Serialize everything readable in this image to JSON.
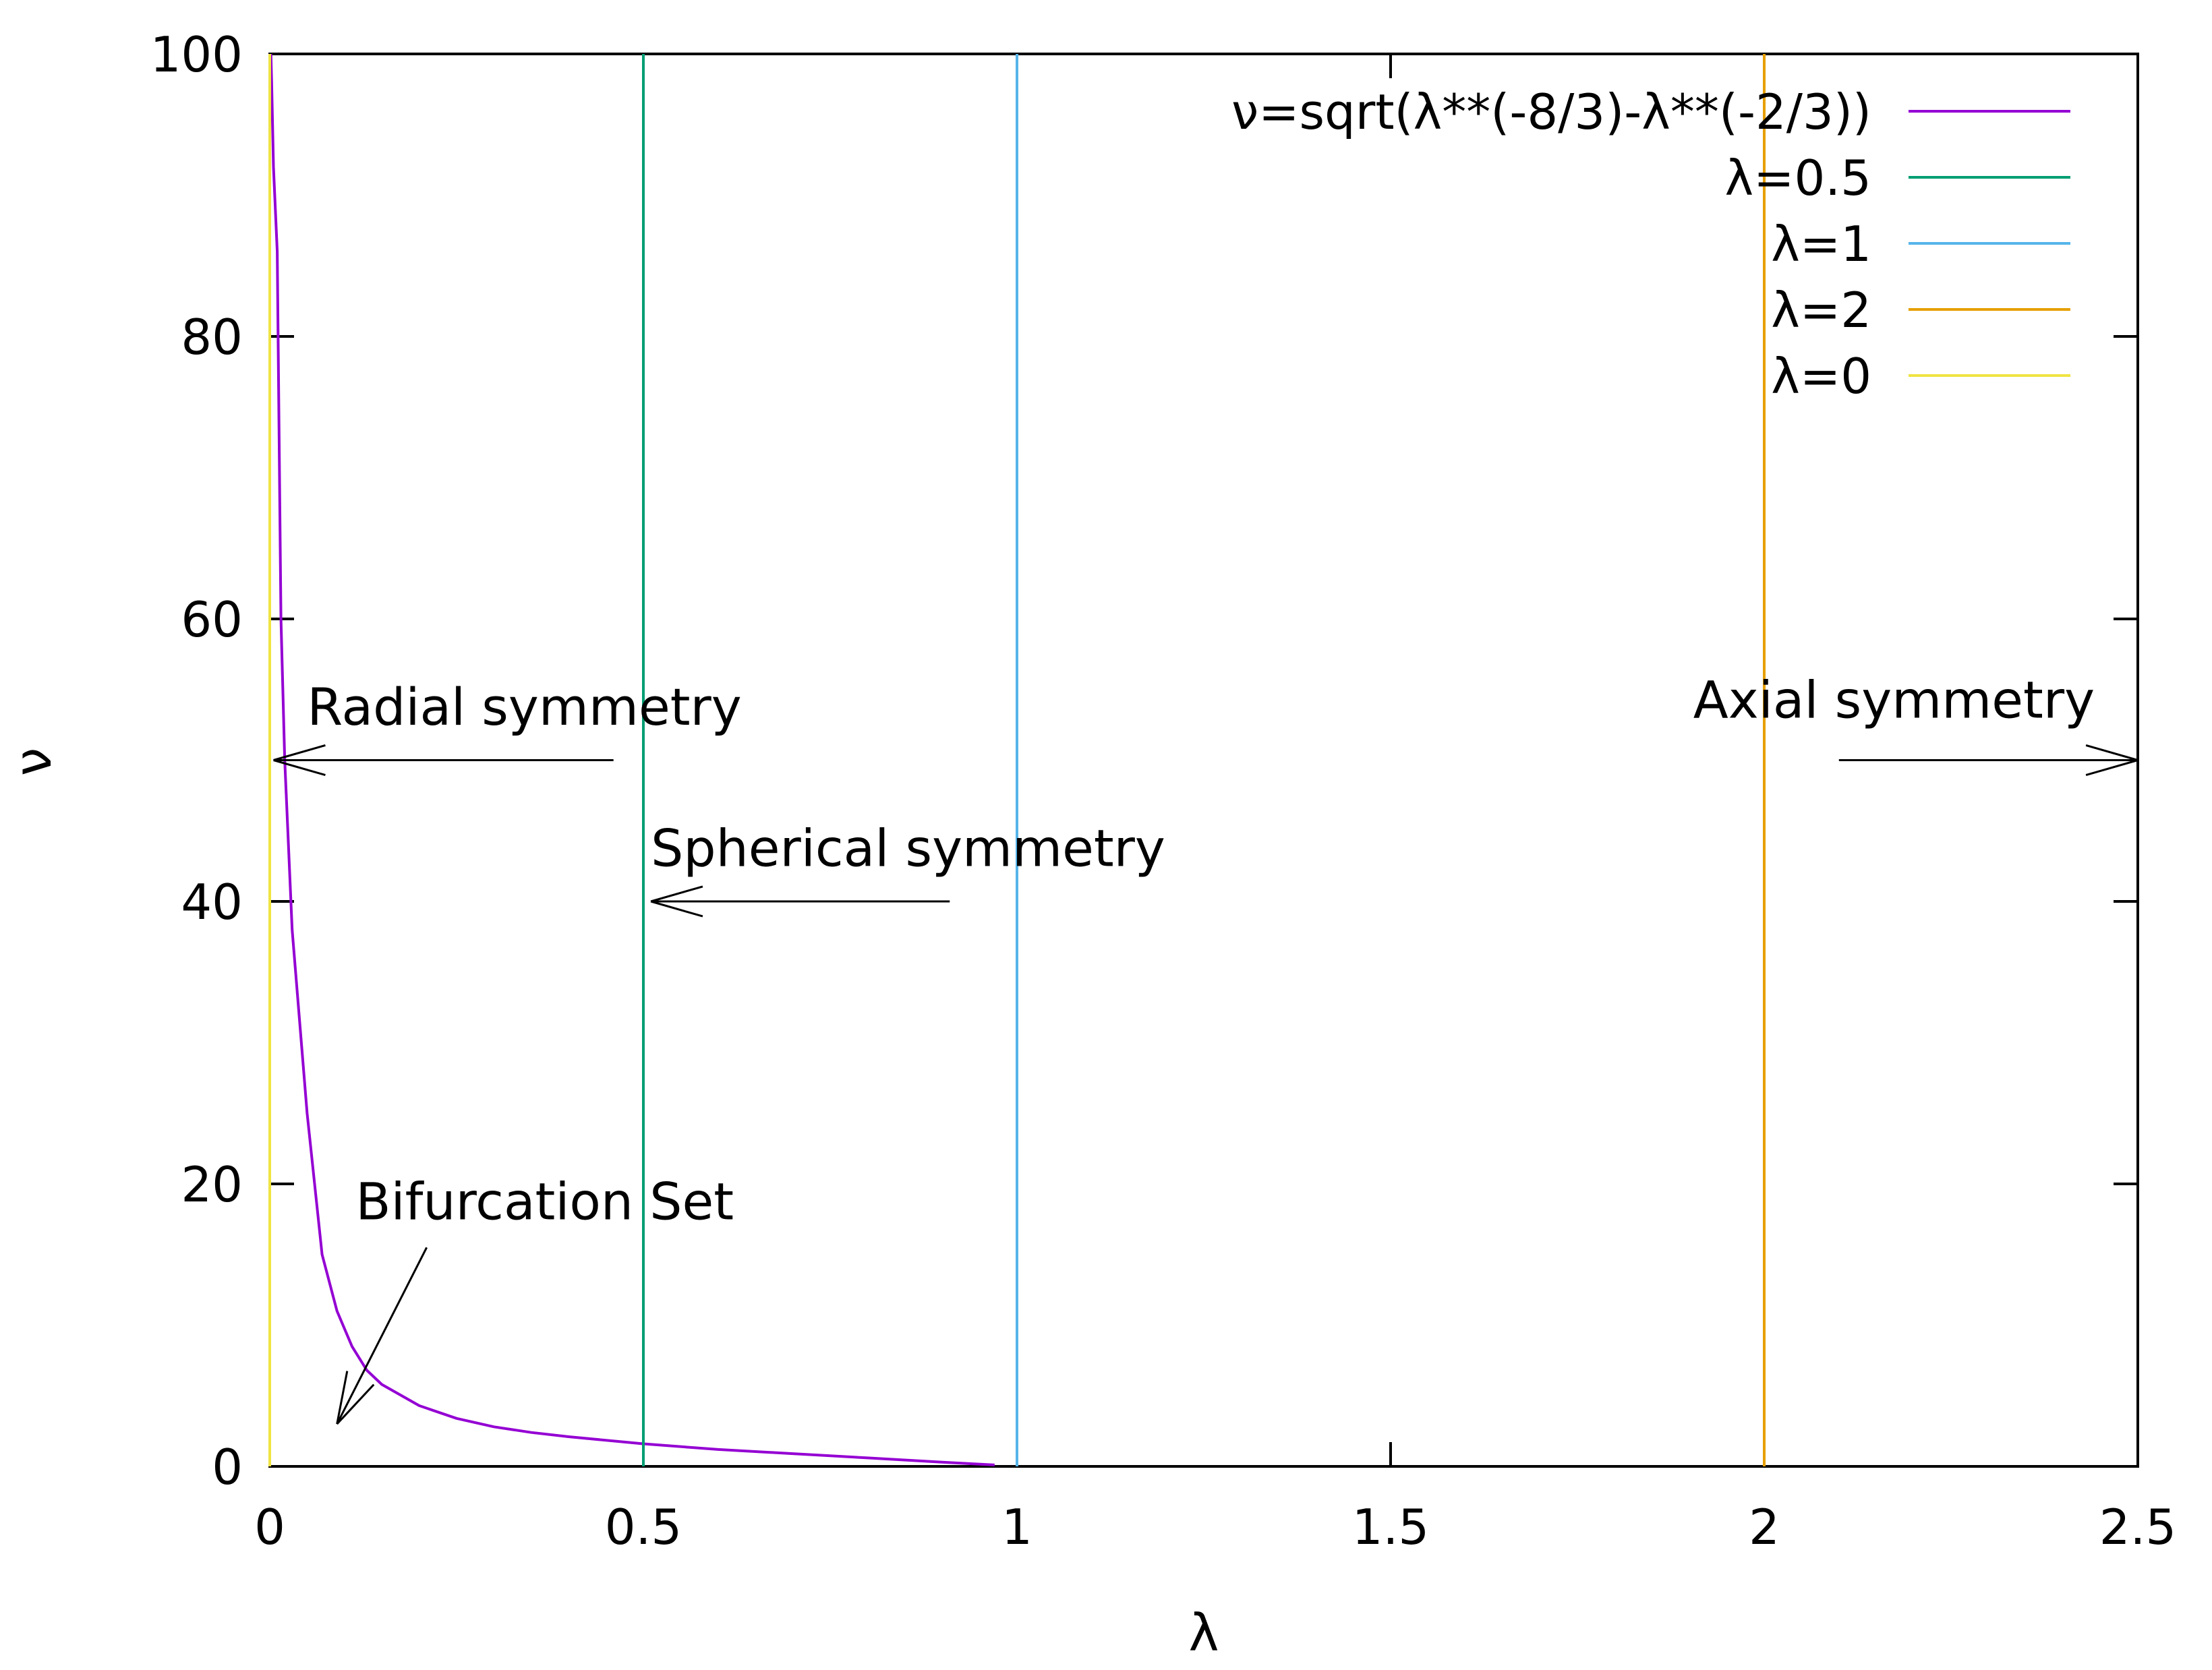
{
  "chart_data": {
    "type": "line",
    "title": "",
    "xlabel": "λ",
    "ylabel": "ν",
    "xlim": [
      0,
      2.5
    ],
    "ylim": [
      0,
      100
    ],
    "grid": false,
    "legend_position": "top-right",
    "x_ticks": [
      "0",
      "0.5",
      "1",
      "1.5",
      "2",
      "2.5"
    ],
    "x_tick_values": [
      0,
      0.5,
      1,
      1.5,
      2,
      2.5
    ],
    "y_ticks": [
      "0",
      "20",
      "40",
      "60",
      "80",
      "100"
    ],
    "y_tick_values": [
      0,
      20,
      40,
      60,
      80,
      100
    ],
    "series": [
      {
        "name": "ν=sqrt(λ**(-8/3)-λ**(-2/3))",
        "kind": "curve",
        "color": "#9400d3",
        "x": [
          0.0015,
          0.0025,
          0.005,
          0.01,
          0.015,
          0.02,
          0.03,
          0.05,
          0.07,
          0.09,
          0.11,
          0.13,
          0.15,
          0.2,
          0.25,
          0.3,
          0.35,
          0.4,
          0.5,
          0.6,
          0.7,
          0.8,
          0.9,
          0.97
        ],
        "y": [
          100,
          98,
          92,
          86,
          60,
          50,
          38,
          25,
          15,
          11,
          8.5,
          6.8,
          5.8,
          4.3,
          3.4,
          2.8,
          2.4,
          2.1,
          1.6,
          1.2,
          0.9,
          0.6,
          0.3,
          0.1
        ]
      },
      {
        "name": "λ=0.5",
        "kind": "vline",
        "x": 0.5,
        "color": "#009e73"
      },
      {
        "name": "λ=1",
        "kind": "vline",
        "x": 1,
        "color": "#56b4e9"
      },
      {
        "name": "λ=2",
        "kind": "vline",
        "x": 2,
        "color": "#e69f00"
      },
      {
        "name": "λ=0",
        "kind": "vline",
        "x": 0,
        "color": "#f0e442"
      }
    ],
    "annotations": [
      {
        "text": "Radial symmetry",
        "label_at": [
          0.05,
          52.5
        ],
        "arrow_from": [
          0.46,
          50
        ],
        "arrow_to": [
          0.005,
          50
        ]
      },
      {
        "text": "Spherical symmetry",
        "label_at": [
          0.51,
          42.5
        ],
        "arrow_from": [
          0.91,
          40
        ],
        "arrow_to": [
          0.51,
          40
        ]
      },
      {
        "text": "Axial symmetry",
        "label_at": [
          1.905,
          53.0
        ],
        "arrow_from": [
          2.1,
          50
        ],
        "arrow_to": [
          2.5,
          50
        ]
      },
      {
        "text": "Bifurcation Set",
        "label_at": [
          0.115,
          17.5
        ],
        "arrow_from": [
          0.21,
          15.5
        ],
        "arrow_to": [
          0.09,
          3
        ]
      }
    ]
  }
}
